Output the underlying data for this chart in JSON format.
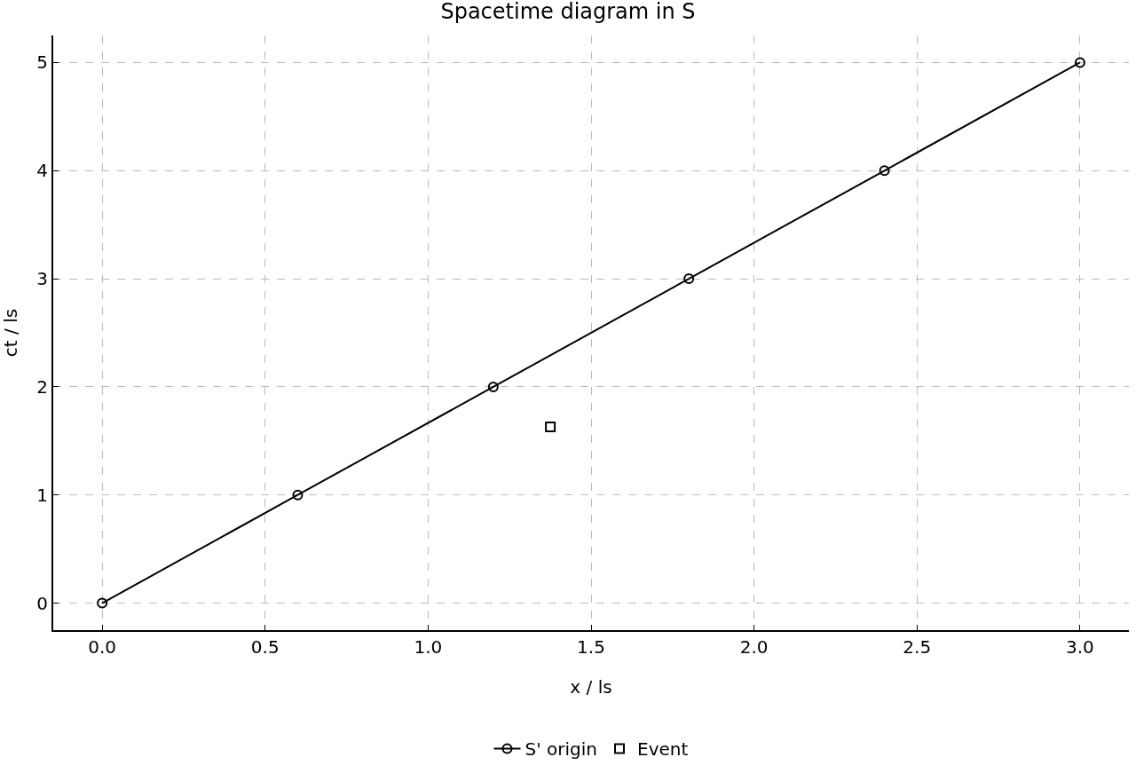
{
  "chart_data": {
    "type": "line",
    "title": "Spacetime diagram in S",
    "xlabel": "x / ls",
    "ylabel": "ct / ls",
    "x": [
      0,
      0.6,
      1.2,
      1.8,
      2.4,
      3.0
    ],
    "series": [
      {
        "name": "S' origin",
        "color": "#000000",
        "values": [
          0,
          1,
          2,
          3,
          4,
          5
        ],
        "marker": "circle",
        "line_style": "solid"
      },
      {
        "name": "Event",
        "type": "scatter",
        "color": "#000000",
        "x": [
          1.375
        ],
        "values": [
          1.63
        ],
        "marker": "square"
      }
    ],
    "xlim": [
      -0.15,
      3.15
    ],
    "xticks": [
      {
        "value": 0,
        "label": "0.0"
      },
      {
        "value": 0.5,
        "label": "0.5"
      },
      {
        "value": 1,
        "label": "1.0"
      },
      {
        "value": 1.5,
        "label": "1.5"
      },
      {
        "value": 2,
        "label": "2.0"
      },
      {
        "value": 2.5,
        "label": "2.5"
      },
      {
        "value": 3,
        "label": "3.0"
      }
    ],
    "ylim": [
      -0.25,
      5.25
    ],
    "yticks": [
      0,
      1,
      2,
      3,
      4,
      5
    ],
    "grid": true,
    "legend": "bottom"
  }
}
